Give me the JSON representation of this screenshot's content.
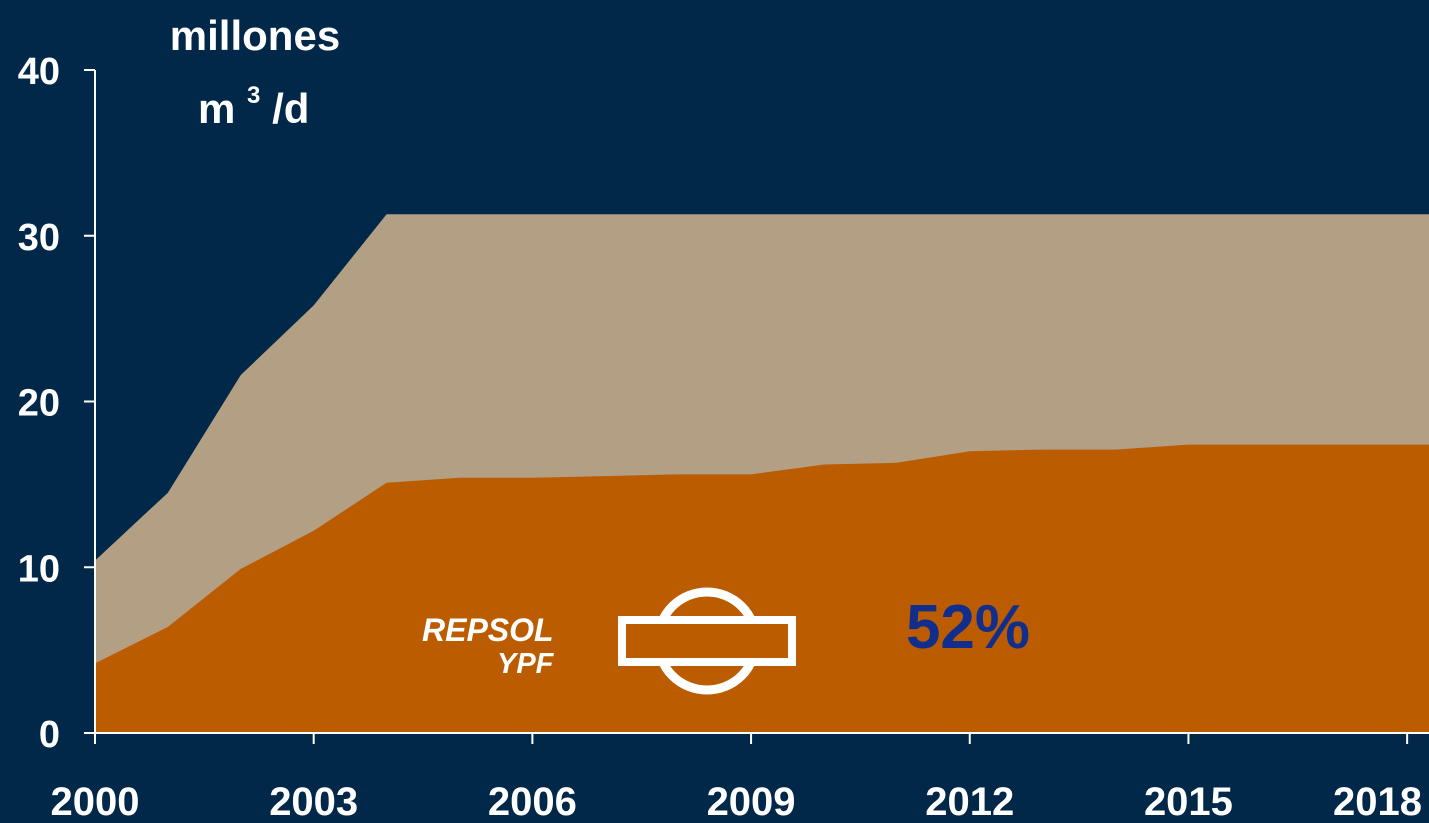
{
  "chart_data": {
    "type": "area",
    "stacked": true,
    "x": [
      2000,
      2001,
      2002,
      2003,
      2004,
      2005,
      2006,
      2007,
      2008,
      2009,
      2010,
      2011,
      2012,
      2013,
      2014,
      2015,
      2016,
      2017,
      2018,
      2018.3
    ],
    "series": [
      {
        "values": [
          4.2,
          6.4,
          9.9,
          12.2,
          15.1,
          15.4,
          15.4,
          15.5,
          15.6,
          15.6,
          16.2,
          16.3,
          17.0,
          17.1,
          17.1,
          17.4,
          17.4,
          17.4,
          17.4,
          17.4
        ]
      },
      {
        "values": [
          6.2,
          8.1,
          11.7,
          13.6,
          16.2,
          15.9,
          15.9,
          15.8,
          15.7,
          15.7,
          15.1,
          15.0,
          14.3,
          14.2,
          14.2,
          13.9,
          13.9,
          13.9,
          13.9,
          13.9
        ]
      }
    ],
    "colors": {
      "lower": "#bc5c00",
      "upper": "#b29f84",
      "background": "#012849",
      "annotation": "#112e8c"
    },
    "xticks": [
      "2000",
      "2003",
      "2006",
      "2009",
      "2012",
      "2015",
      "2018"
    ],
    "yticks": [
      "0",
      "10",
      "20",
      "30",
      "40"
    ],
    "ylim": [
      0,
      40
    ],
    "xlim": [
      2000,
      2018.3
    ],
    "ylabel": {
      "line1": "millones",
      "line2": "m",
      "sup": "3",
      "suffix": "/d"
    },
    "annotation": "52%",
    "logo": {
      "line1": "REPSOL",
      "line2": "YPF"
    }
  }
}
